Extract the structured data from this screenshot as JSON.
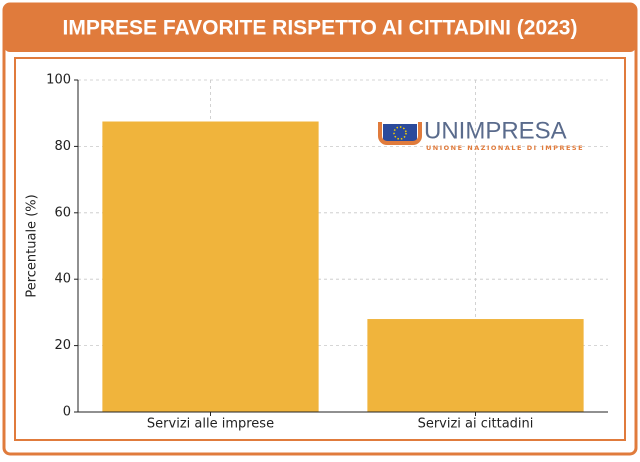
{
  "chart_data": {
    "type": "bar",
    "title": "IMPRESE FAVORITE RISPETTO AI CITTADINI (2023)",
    "y_label": "Percentuale (%)",
    "categories": [
      "Servizi alle imprese",
      "Servizi ai cittadini"
    ],
    "values": [
      87.5,
      28
    ],
    "color": "#f0b43c",
    "ylim": [
      0,
      100
    ],
    "yticks": [
      0,
      20,
      40,
      60,
      80,
      100
    ],
    "grid": true
  },
  "logo": {
    "name": "UNIMPRESA",
    "tagline": "UNIONE NAZIONALE DI IMPRESE"
  }
}
